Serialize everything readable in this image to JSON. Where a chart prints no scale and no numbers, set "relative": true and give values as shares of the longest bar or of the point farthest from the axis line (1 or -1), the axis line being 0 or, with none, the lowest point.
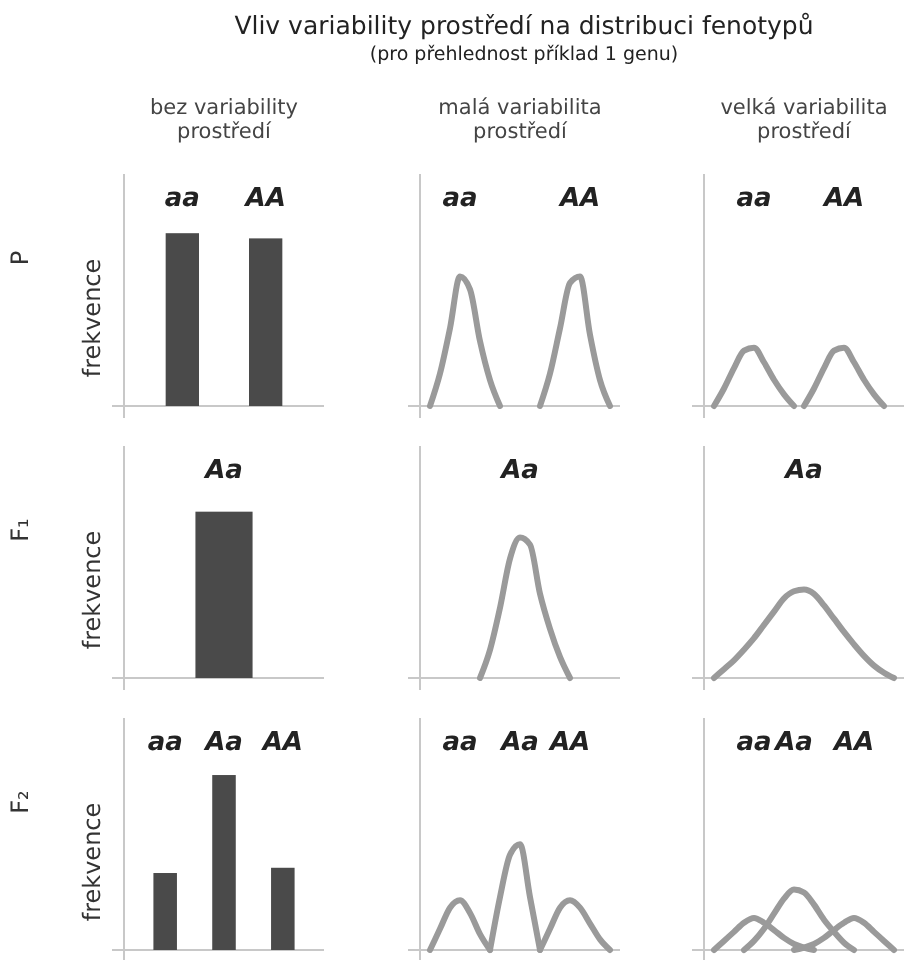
{
  "chart_data": [
    {
      "type": "other",
      "title": "Vliv variability prostředí na distribuci fenotypů",
      "subtitle": "(pro přehlednost příklad 1 genu)"
    },
    {
      "type": "bar",
      "relative": true,
      "title": "bez variability prostředí",
      "ylabel": "frekvence",
      "annotations": [
        "P"
      ],
      "categories": [
        "aa",
        "AA"
      ],
      "values": [
        1,
        0.97
      ],
      "color": "#4a4a4a"
    },
    {
      "type": "line",
      "relative": true,
      "title": "malá variabilita prostředí",
      "annotations": [
        "aa",
        "AA"
      ],
      "categories": [
        null,
        null,
        null,
        null,
        null,
        null,
        null,
        null,
        null,
        null,
        null,
        null,
        null,
        null,
        null,
        null,
        null,
        null,
        null,
        null,
        null
      ],
      "series": [
        {
          "color": "#9a9a9a",
          "values": [
            null,
            0,
            0.25,
            0.6,
            1,
            0.9,
            0.5,
            0.2,
            0,
            null,
            null,
            null,
            null,
            null,
            null,
            null,
            null,
            null,
            null,
            null,
            null
          ]
        },
        {
          "color": "#9a9a9a",
          "values": [
            null,
            null,
            null,
            null,
            null,
            null,
            null,
            null,
            null,
            null,
            null,
            null,
            0,
            0.25,
            0.6,
            0.95,
            1,
            0.55,
            0.2,
            0,
            null
          ]
        }
      ]
    },
    {
      "type": "line",
      "relative": true,
      "title": "velká variabilita prostředí",
      "annotations": [
        "aa",
        "AA"
      ],
      "categories": [
        null,
        null,
        null,
        null,
        null,
        null,
        null,
        null,
        null,
        null,
        null,
        null,
        null,
        null,
        null,
        null,
        null,
        null,
        null,
        null,
        null
      ],
      "series": [
        {
          "color": "#9a9a9a",
          "values": [
            null,
            0,
            0.3,
            0.65,
            0.95,
            1,
            0.75,
            0.45,
            0.2,
            0,
            null,
            null,
            null,
            null,
            null,
            null,
            null,
            null,
            null,
            null,
            null
          ]
        },
        {
          "color": "#9a9a9a",
          "values": [
            null,
            null,
            null,
            null,
            null,
            null,
            null,
            null,
            null,
            null,
            0,
            0.3,
            0.65,
            0.95,
            1,
            0.75,
            0.45,
            0.2,
            0,
            null,
            null
          ]
        }
      ]
    },
    {
      "type": "bar",
      "relative": true,
      "ylabel": "frekvence",
      "annotations": [
        "F₁"
      ],
      "categories": [
        "Aa"
      ],
      "values": [
        1
      ],
      "color": "#4a4a4a"
    },
    {
      "type": "line",
      "relative": true,
      "annotations": [
        "Aa"
      ],
      "categories": [
        null,
        null,
        null,
        null,
        null,
        null,
        null,
        null,
        null,
        null,
        null,
        null,
        null,
        null,
        null,
        null,
        null,
        null,
        null,
        null,
        null
      ],
      "series": [
        {
          "color": "#9a9a9a",
          "values": [
            null,
            null,
            null,
            null,
            null,
            null,
            0,
            0.2,
            0.5,
            0.85,
            1,
            0.95,
            0.6,
            0.35,
            0.15,
            0,
            null,
            null,
            null,
            null,
            null
          ]
        }
      ]
    },
    {
      "type": "line",
      "relative": true,
      "annotations": [
        "Aa"
      ],
      "categories": [
        null,
        null,
        null,
        null,
        null,
        null,
        null,
        null,
        null,
        null,
        null,
        null,
        null,
        null,
        null,
        null,
        null,
        null,
        null,
        null,
        null
      ],
      "series": [
        {
          "color": "#9a9a9a",
          "values": [
            null,
            0,
            0.1,
            0.2,
            0.32,
            0.45,
            0.6,
            0.75,
            0.9,
            0.98,
            1,
            0.95,
            0.82,
            0.67,
            0.52,
            0.38,
            0.25,
            0.14,
            0.06,
            0,
            null
          ]
        }
      ]
    },
    {
      "type": "bar",
      "relative": true,
      "ylabel": "frekvence",
      "annotations": [
        "F₂"
      ],
      "categories": [
        "aa",
        "Aa",
        "AA"
      ],
      "values": [
        0.44,
        1,
        0.47
      ],
      "color": "#4a4a4a"
    },
    {
      "type": "line",
      "relative": true,
      "annotations": [
        "aa",
        "Aa",
        "AA"
      ],
      "categories": [
        null,
        null,
        null,
        null,
        null,
        null,
        null,
        null,
        null,
        null,
        null,
        null,
        null,
        null,
        null,
        null,
        null,
        null,
        null,
        null,
        null
      ],
      "series": [
        {
          "color": "#9a9a9a",
          "values": [
            null,
            0,
            0.2,
            0.4,
            0.47,
            0.35,
            0.15,
            0,
            null,
            null,
            null,
            null,
            null,
            null,
            null,
            null,
            null,
            null,
            null,
            null,
            null
          ]
        },
        {
          "color": "#9a9a9a",
          "values": [
            null,
            null,
            null,
            null,
            null,
            null,
            null,
            0,
            0.5,
            0.9,
            1,
            0.5,
            0,
            null,
            null,
            null,
            null,
            null,
            null,
            null,
            null
          ]
        },
        {
          "color": "#9a9a9a",
          "values": [
            null,
            null,
            null,
            null,
            null,
            null,
            null,
            null,
            null,
            null,
            null,
            null,
            0,
            0.2,
            0.4,
            0.47,
            0.4,
            0.25,
            0.1,
            0,
            null
          ]
        }
      ]
    },
    {
      "type": "line",
      "relative": true,
      "annotations": [
        "aa",
        "Aa",
        "AA"
      ],
      "categories": [
        null,
        null,
        null,
        null,
        null,
        null,
        null,
        null,
        null,
        null,
        null,
        null,
        null,
        null,
        null,
        null,
        null,
        null,
        null,
        null,
        null
      ],
      "series": [
        {
          "color": "#9a9a9a",
          "values": [
            null,
            0,
            0.15,
            0.3,
            0.45,
            0.53,
            0.45,
            0.33,
            0.2,
            0.1,
            0.04,
            0,
            null,
            null,
            null,
            null,
            null,
            null,
            null,
            null,
            null
          ]
        },
        {
          "color": "#9a9a9a",
          "values": [
            null,
            null,
            null,
            null,
            0,
            0.15,
            0.35,
            0.6,
            0.85,
            1,
            0.95,
            0.75,
            0.5,
            0.3,
            0.12,
            0,
            null,
            null,
            null,
            null,
            null
          ]
        },
        {
          "color": "#9a9a9a",
          "values": [
            null,
            null,
            null,
            null,
            null,
            null,
            null,
            null,
            null,
            0,
            0.04,
            0.1,
            0.2,
            0.33,
            0.45,
            0.53,
            0.45,
            0.3,
            0.15,
            0,
            null
          ]
        }
      ]
    }
  ]
}
